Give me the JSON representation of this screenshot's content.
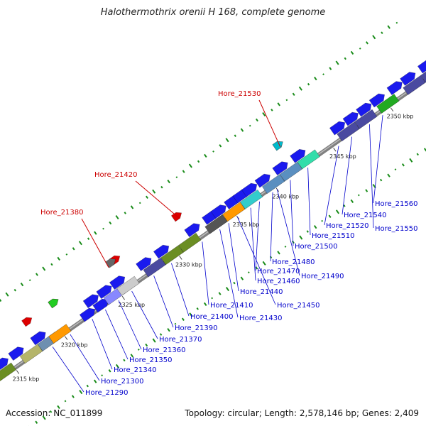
{
  "title": "Halothermothrix orenii H 168, complete genome",
  "accession_text": "Accession: NC_011899",
  "info_text": "Topology: circular; Length: 2,578,146 bp; Genes: 2,409",
  "colors": {
    "label_red": "#cc0000",
    "label_blue": "#0000cc",
    "backbone": "#808080",
    "gc_tick": "#1a8c1a",
    "leader": "#0000cc"
  },
  "ticks": [
    {
      "label": "2315 kbp",
      "t": 0.05
    },
    {
      "label": "2320 kbp",
      "t": 0.16
    },
    {
      "label": "2325 kbp",
      "t": 0.29
    },
    {
      "label": "2330 kbp",
      "t": 0.42
    },
    {
      "label": "2335 kbp",
      "t": 0.55
    },
    {
      "label": "2340 kbp",
      "t": 0.64
    },
    {
      "label": "2345 kbp",
      "t": 0.77
    },
    {
      "label": "2350 kbp",
      "t": 0.9
    }
  ],
  "red_labels": [
    "Hore_21380",
    "Hore_21420",
    "Hore_21530"
  ],
  "blue_labels": [
    "Hore_21290",
    "Hore_21300",
    "Hore_21340",
    "Hore_21350",
    "Hore_21360",
    "Hore_21370",
    "Hore_21390",
    "Hore_21400",
    "Hore_21410",
    "Hore_21430",
    "Hore_21440",
    "Hore_21450",
    "Hore_21460",
    "Hore_21470",
    "Hore_21480",
    "Hore_21490",
    "Hore_21500",
    "Hore_21510",
    "Hore_21520",
    "Hore_21540",
    "Hore_21550",
    "Hore_21560"
  ],
  "genes": [
    {
      "t": 0.0,
      "side": "top",
      "dir": 1,
      "color": "#1a1aee"
    },
    {
      "t": 0.035,
      "side": "top",
      "dir": 1,
      "color": "#1a1aee"
    },
    {
      "t": 0.07,
      "side": "top",
      "dir": 1,
      "color": "#1a1aee"
    },
    {
      "t": 0.12,
      "side": "top",
      "dir": 1,
      "color": "#1a1aee"
    },
    {
      "t": 0.03,
      "side": "bot",
      "dir": 1,
      "color": "#6b8e23"
    },
    {
      "t": 0.09,
      "side": "bot",
      "dir": 1,
      "color": "#b5b56a"
    },
    {
      "t": 0.13,
      "side": "bot",
      "dir": 1,
      "color": "#6e8fb0"
    },
    {
      "t": 0.155,
      "side": "bot",
      "dir": 1,
      "color": "#ff9900"
    },
    {
      "t": 0.24,
      "side": "top",
      "dir": 1,
      "color": "#1a1aee"
    },
    {
      "t": 0.27,
      "side": "top",
      "dir": 1,
      "color": "#1a1aee"
    },
    {
      "t": 0.3,
      "side": "top",
      "dir": 1,
      "color": "#1a1aee"
    },
    {
      "t": 0.22,
      "side": "bot",
      "dir": 1,
      "color": "#1a1aee"
    },
    {
      "t": 0.25,
      "side": "bot",
      "dir": 1,
      "color": "#1a1aee"
    },
    {
      "t": 0.28,
      "side": "bot",
      "dir": 1,
      "color": "#8888ff"
    },
    {
      "t": 0.31,
      "side": "bot",
      "dir": 1,
      "color": "#cccccc"
    },
    {
      "t": 0.36,
      "side": "top",
      "dir": 1,
      "color": "#1a1aee"
    },
    {
      "t": 0.4,
      "side": "top",
      "dir": 1,
      "color": "#1a1aee"
    },
    {
      "t": 0.37,
      "side": "bot",
      "dir": 1,
      "color": "#4a4aa0"
    },
    {
      "t": 0.41,
      "side": "bot",
      "dir": 1,
      "color": "#6b8e23"
    },
    {
      "t": 0.45,
      "side": "bot",
      "dir": 1,
      "color": "#6b8e23"
    },
    {
      "t": 0.47,
      "side": "top",
      "dir": 1,
      "color": "#1a1aee"
    },
    {
      "t": 0.51,
      "side": "top",
      "dir": 1,
      "color": "#1a1aee"
    },
    {
      "t": 0.53,
      "side": "top",
      "dir": 1,
      "color": "#1a1aee"
    },
    {
      "t": 0.51,
      "side": "bot",
      "dir": 1,
      "color": "#555555"
    },
    {
      "t": 0.56,
      "side": "top",
      "dir": 1,
      "color": "#1a1aee"
    },
    {
      "t": 0.58,
      "side": "top",
      "dir": 1,
      "color": "#1a1aee"
    },
    {
      "t": 0.6,
      "side": "top",
      "dir": 1,
      "color": "#1a1aee"
    },
    {
      "t": 0.55,
      "side": "bot",
      "dir": 1,
      "color": "#ff9900"
    },
    {
      "t": 0.59,
      "side": "bot",
      "dir": 1,
      "color": "#33cccc"
    },
    {
      "t": 0.63,
      "side": "top",
      "dir": 1,
      "color": "#1a1aee"
    },
    {
      "t": 0.67,
      "side": "top",
      "dir": 1,
      "color": "#1a1aee"
    },
    {
      "t": 0.64,
      "side": "bot",
      "dir": 1,
      "color": "#5a8fc0"
    },
    {
      "t": 0.68,
      "side": "bot",
      "dir": 1,
      "color": "#5a8fc0"
    },
    {
      "t": 0.71,
      "side": "top",
      "dir": 1,
      "color": "#1a1aee"
    },
    {
      "t": 0.72,
      "side": "bot",
      "dir": 1,
      "color": "#33ddaa"
    },
    {
      "t": 0.8,
      "side": "top",
      "dir": 1,
      "color": "#1a1aee"
    },
    {
      "t": 0.83,
      "side": "top",
      "dir": 1,
      "color": "#1a1aee"
    },
    {
      "t": 0.86,
      "side": "top",
      "dir": 1,
      "color": "#1a1aee"
    },
    {
      "t": 0.89,
      "side": "top",
      "dir": 1,
      "color": "#1a1aee"
    },
    {
      "t": 0.81,
      "side": "bot",
      "dir": 1,
      "color": "#4a4aa0"
    },
    {
      "t": 0.85,
      "side": "bot",
      "dir": 1,
      "color": "#4a4aa0"
    },
    {
      "t": 0.93,
      "side": "top",
      "dir": 1,
      "color": "#1a1aee"
    },
    {
      "t": 0.9,
      "side": "bot",
      "dir": 1,
      "color": "#22aa22"
    },
    {
      "t": 0.96,
      "side": "top",
      "dir": 1,
      "color": "#1a1aee"
    },
    {
      "t": 0.96,
      "side": "bot",
      "dir": 1,
      "color": "#4a4aa0"
    },
    {
      "t": 1.0,
      "side": "top",
      "dir": 1,
      "color": "#1a1aee"
    },
    {
      "t": 1.0,
      "side": "bot",
      "dir": 1,
      "color": "#4a4aa0"
    },
    {
      "t": 1.03,
      "side": "top",
      "dir": 1,
      "color": "#22cc22"
    }
  ],
  "outer_genes": [
    {
      "t": 0.12,
      "color": "#dd0000"
    },
    {
      "t": 0.18,
      "color": "#dd0000"
    },
    {
      "t": 0.18,
      "color": "#22cc22"
    },
    {
      "t": 0.32,
      "color": "#dd0000"
    },
    {
      "t": 0.31,
      "color": "#666666"
    },
    {
      "t": 0.46,
      "color": "#dd0000"
    },
    {
      "t": 0.69,
      "color": "#dd0000"
    },
    {
      "t": 0.69,
      "color": "#00bbcc"
    }
  ]
}
